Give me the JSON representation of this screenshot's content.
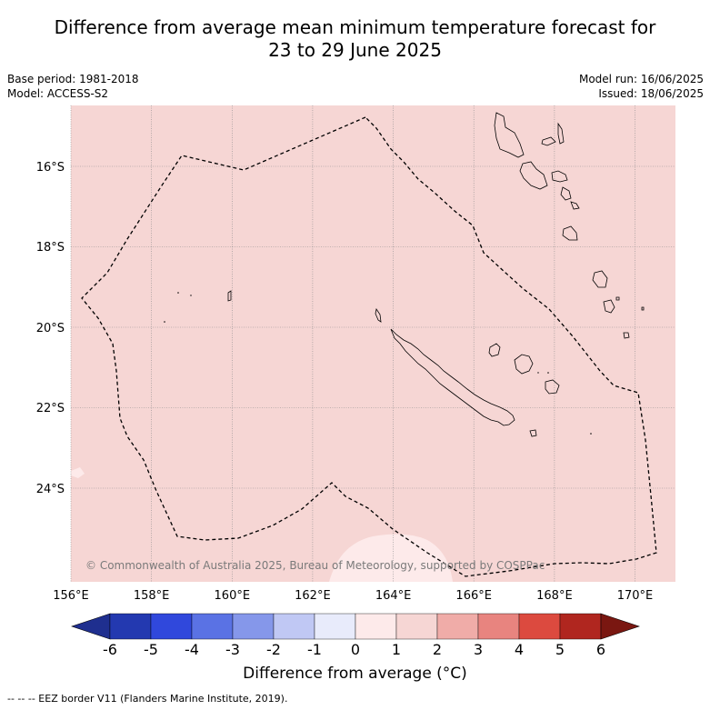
{
  "title_line1": "Difference from average mean minimum temperature forecast for",
  "title_line2": "23 to 29 June 2025",
  "base_period": "Base period: 1981-2018",
  "model": "Model: ACCESS-S2",
  "model_run": "Model run: 16/06/2025",
  "issued": "Issued: 18/06/2025",
  "copyright": "© Commonwealth of Australia 2025, Bureau of Meteorology, supported by COSPPac",
  "lon_labels": [
    "156°E",
    "158°E",
    "160°E",
    "162°E",
    "164°E",
    "166°E",
    "168°E",
    "170°E"
  ],
  "lat_labels": [
    "16°S",
    "18°S",
    "20°S",
    "22°S",
    "24°S"
  ],
  "colorbar": {
    "ticks": [
      "-6",
      "-5",
      "-4",
      "-3",
      "-2",
      "-1",
      "0",
      "1",
      "2",
      "3",
      "4",
      "5",
      "6"
    ],
    "colors": [
      "#1f2f8f",
      "#2339b0",
      "#3048dc",
      "#5a72e4",
      "#8597ea",
      "#c0c8f4",
      "#e8ebfb",
      "#fdeaea",
      "#f6d6d4",
      "#f0aca8",
      "#e8847f",
      "#dc4a3f",
      "#b0261f",
      "#7a1711"
    ],
    "label": "Difference from average (°C)"
  },
  "colors": {
    "map_background": "#f6d6d4",
    "warm_patch": "#fdeaea",
    "grid": "#8a8a8a"
  },
  "footnote": "-- -- -- EEZ border V11 (Flanders Marine Institute, 2019)."
}
